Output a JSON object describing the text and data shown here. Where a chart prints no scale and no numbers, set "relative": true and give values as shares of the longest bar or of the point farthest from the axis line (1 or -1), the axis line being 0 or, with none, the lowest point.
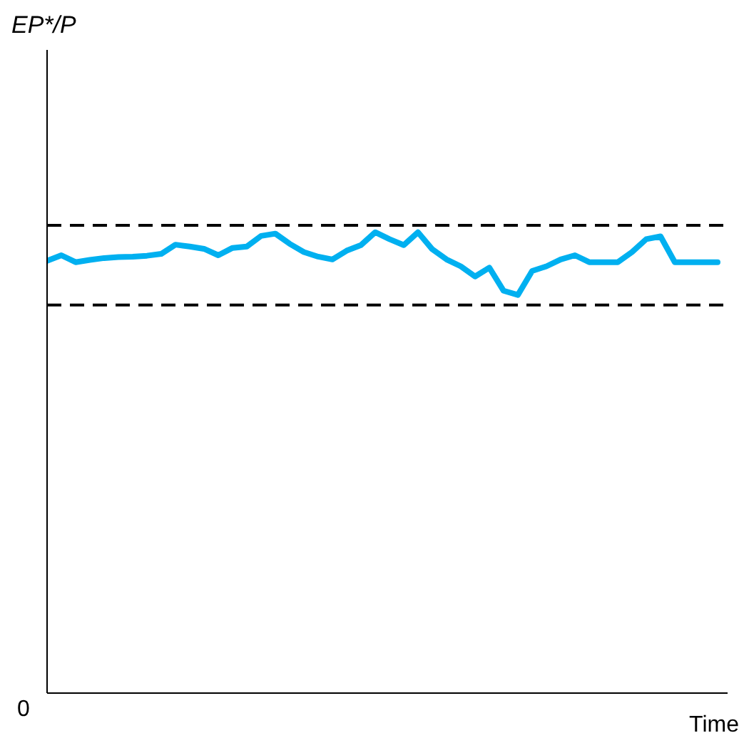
{
  "chart_data": {
    "type": "line",
    "title": "EP*/P",
    "xlabel": "Time",
    "relative": true,
    "annotations": [
      "0"
    ],
    "categories": [
      null,
      null,
      null,
      null,
      null,
      null,
      null,
      null,
      null,
      null,
      null,
      null,
      null,
      null,
      null,
      null,
      null,
      null,
      null,
      null,
      null,
      null,
      null,
      null,
      null,
      null,
      null,
      null,
      null,
      null,
      null,
      null,
      null,
      null,
      null,
      null,
      null,
      null,
      null,
      null,
      null,
      null,
      null,
      null,
      null,
      null,
      null,
      null
    ],
    "series": [
      {
        "color": "#00b0f0",
        "values": [
          0.938,
          0.95,
          0.935,
          0.94,
          0.944,
          0.946,
          0.947,
          0.949,
          0.953,
          0.973,
          0.969,
          0.964,
          0.95,
          0.966,
          0.969,
          0.992,
          0.997,
          0.975,
          0.957,
          0.947,
          0.941,
          0.96,
          0.972,
          1,
          0.985,
          0.972,
          1,
          0.963,
          0.941,
          0.926,
          0.904,
          0.923,
          0.873,
          0.864,
          0.916,
          0.926,
          0.941,
          0.95,
          0.935,
          0.935,
          0.935,
          0.957,
          0.985,
          0.991,
          0.935,
          0.935,
          0.935,
          0.935
        ]
      }
    ],
    "ref_lines": [
      {
        "axis": "y",
        "value": 1.015,
        "color": "#000000",
        "line_style": "dashed"
      },
      {
        "axis": "y",
        "value": 0.842,
        "color": "#000000",
        "line_style": "dashed"
      }
    ]
  }
}
